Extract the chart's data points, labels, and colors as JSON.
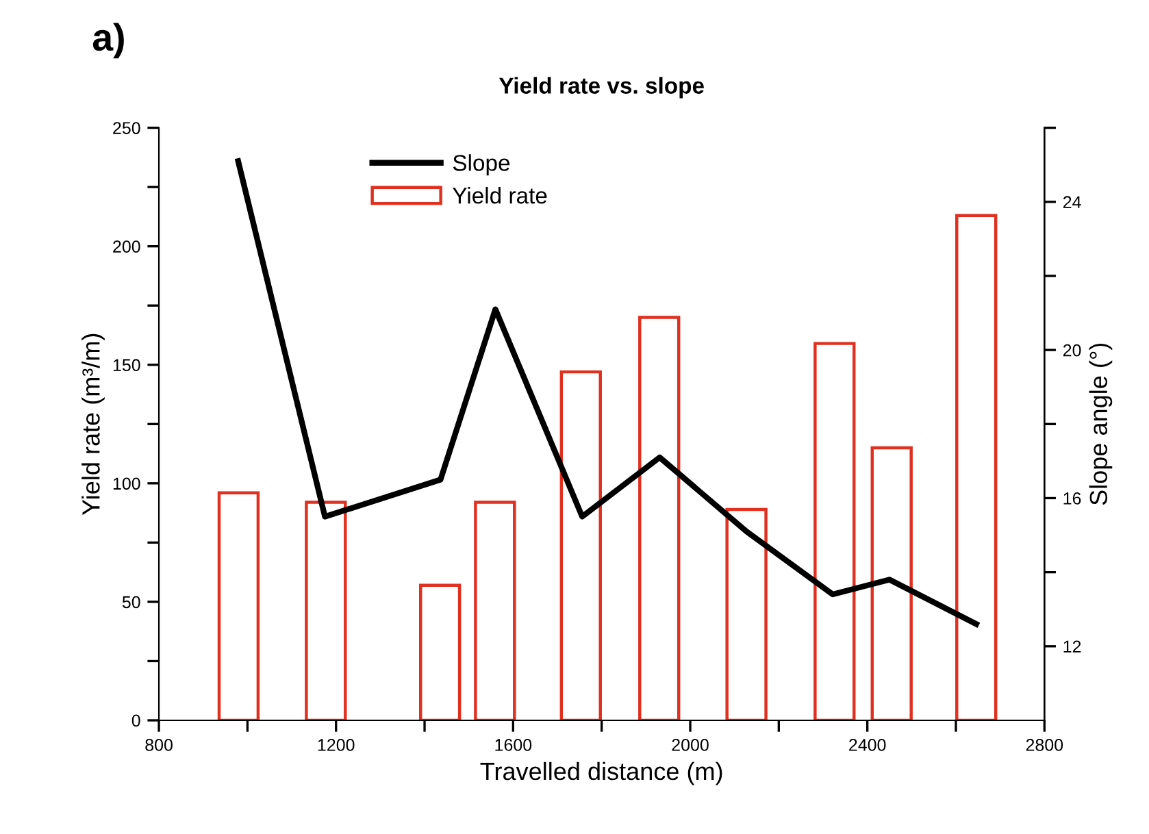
{
  "chart_data": {
    "type": "bar",
    "title": "Yield rate vs. slope",
    "xlabel": "Travelled distance (m)",
    "ylabel": "Yield rate (m³/m)",
    "y2label": "Slope angle (°)",
    "annotations": [
      "a)"
    ],
    "x": [
      980,
      1177,
      1435,
      1559,
      1753,
      1930,
      2127,
      2326,
      2455,
      2646
    ],
    "series": [
      {
        "name": "Slope",
        "type": "line",
        "axis": "y2",
        "color": "#000000",
        "x": [
          979,
          1175,
          1436,
          1560,
          1756,
          1931,
          2127,
          2322,
          2450,
          2646
        ],
        "values": [
          25.1,
          15.5,
          16.5,
          21.1,
          15.5,
          17.1,
          15.1,
          13.4,
          13.8,
          12.6
        ]
      },
      {
        "name": "Yield rate",
        "color": "#e03020",
        "values": [
          96,
          92,
          57,
          92,
          147,
          170,
          89,
          159,
          115,
          213
        ]
      }
    ],
    "xlim": [
      800,
      2800
    ],
    "xticks": [
      800,
      {
        "value": 1000,
        "label": null
      },
      1200,
      {
        "value": 1400,
        "label": null
      },
      1600,
      {
        "value": 1800,
        "label": null
      },
      2000,
      {
        "value": 2200,
        "label": null
      },
      2400,
      {
        "value": 2600,
        "label": null
      },
      2800
    ],
    "ylim": [
      0,
      250
    ],
    "yticks": [
      0,
      {
        "value": 25,
        "label": null
      },
      50,
      {
        "value": 75,
        "label": null
      },
      100,
      {
        "value": 125,
        "label": null
      },
      150,
      {
        "value": 175,
        "label": null
      },
      200,
      {
        "value": 225,
        "label": null
      },
      250
    ],
    "y2lim": [
      10,
      26
    ],
    "y2ticks": [
      12,
      {
        "value": 14,
        "label": null
      },
      16,
      {
        "value": 18,
        "label": null
      },
      20,
      {
        "value": 22,
        "label": null
      },
      24,
      {
        "value": 26,
        "label": null
      }
    ],
    "legend": "top",
    "grid": false,
    "marker": "none",
    "line_style": "solid"
  }
}
